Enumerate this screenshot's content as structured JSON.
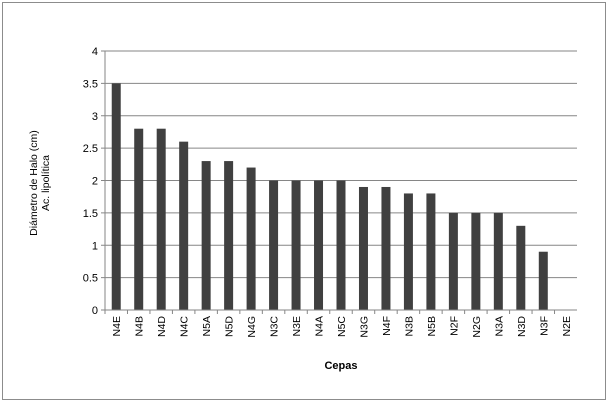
{
  "chart_data": {
    "type": "bar",
    "title": "",
    "xlabel": "Cepas",
    "ylabel_lines": [
      "Diámetro de Halo (cm)",
      "Ac. lipolítica"
    ],
    "ylim": [
      0,
      4
    ],
    "yticks": [
      0,
      0.5,
      1,
      1.5,
      2,
      2.5,
      3,
      3.5,
      4
    ],
    "grid": true,
    "bar_color": "#404040",
    "grid_color": "#868686",
    "categories": [
      "N4E",
      "N4B",
      "N4D",
      "N4C",
      "N5A",
      "N5D",
      "N4G",
      "N3C",
      "N3E",
      "N4A",
      "N5C",
      "N3G",
      "N4F",
      "N3B",
      "N5B",
      "N2F",
      "N2G",
      "N3A",
      "N3D",
      "N3F",
      "N2E"
    ],
    "values": [
      3.5,
      2.8,
      2.8,
      2.6,
      2.3,
      2.3,
      2.2,
      2.0,
      2.0,
      2.0,
      2.0,
      1.9,
      1.9,
      1.8,
      1.8,
      1.5,
      1.5,
      1.5,
      1.3,
      0.9,
      0
    ]
  }
}
